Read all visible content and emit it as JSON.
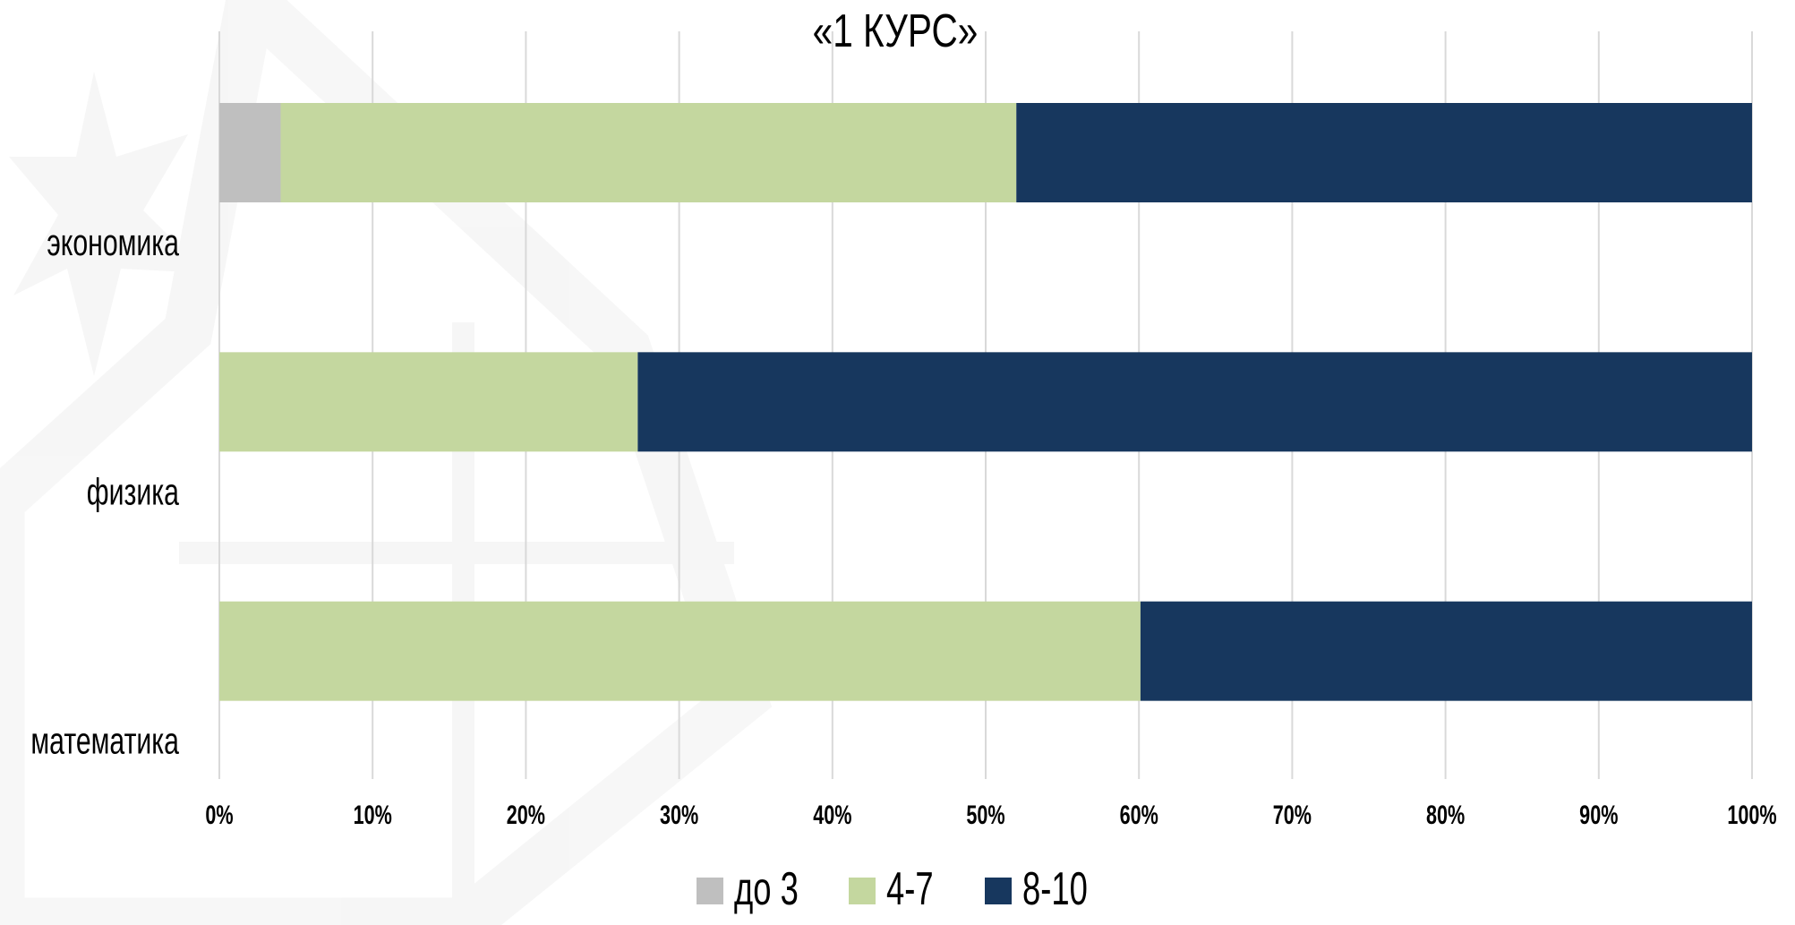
{
  "chart_data": {
    "type": "bar",
    "orientation": "horizontal",
    "stacked": "percent",
    "title": "«1 КУРС»",
    "categories": [
      "экономика",
      "физика",
      "математика"
    ],
    "series": [
      {
        "name": "до 3",
        "color": "#BFBFBF",
        "values": [
          4,
          0,
          0
        ]
      },
      {
        "name": "4-7",
        "color": "#C4D79F",
        "values": [
          48,
          27.3,
          60.1
        ]
      },
      {
        "name": "8-10",
        "color": "#17375E",
        "values": [
          48,
          72.7,
          39.9
        ]
      }
    ],
    "xlim": [
      0,
      100
    ],
    "x_ticks": [
      "0%",
      "10%",
      "20%",
      "30%",
      "40%",
      "50%",
      "60%",
      "70%",
      "80%",
      "90%",
      "100%"
    ],
    "x_tick_values": [
      0,
      10,
      20,
      30,
      40,
      50,
      60,
      70,
      80,
      90,
      100
    ],
    "xlabel": "",
    "ylabel": "",
    "grid": true,
    "legend_position": "bottom"
  },
  "decor": {
    "watermark_icon": "star-watermark-icon"
  }
}
